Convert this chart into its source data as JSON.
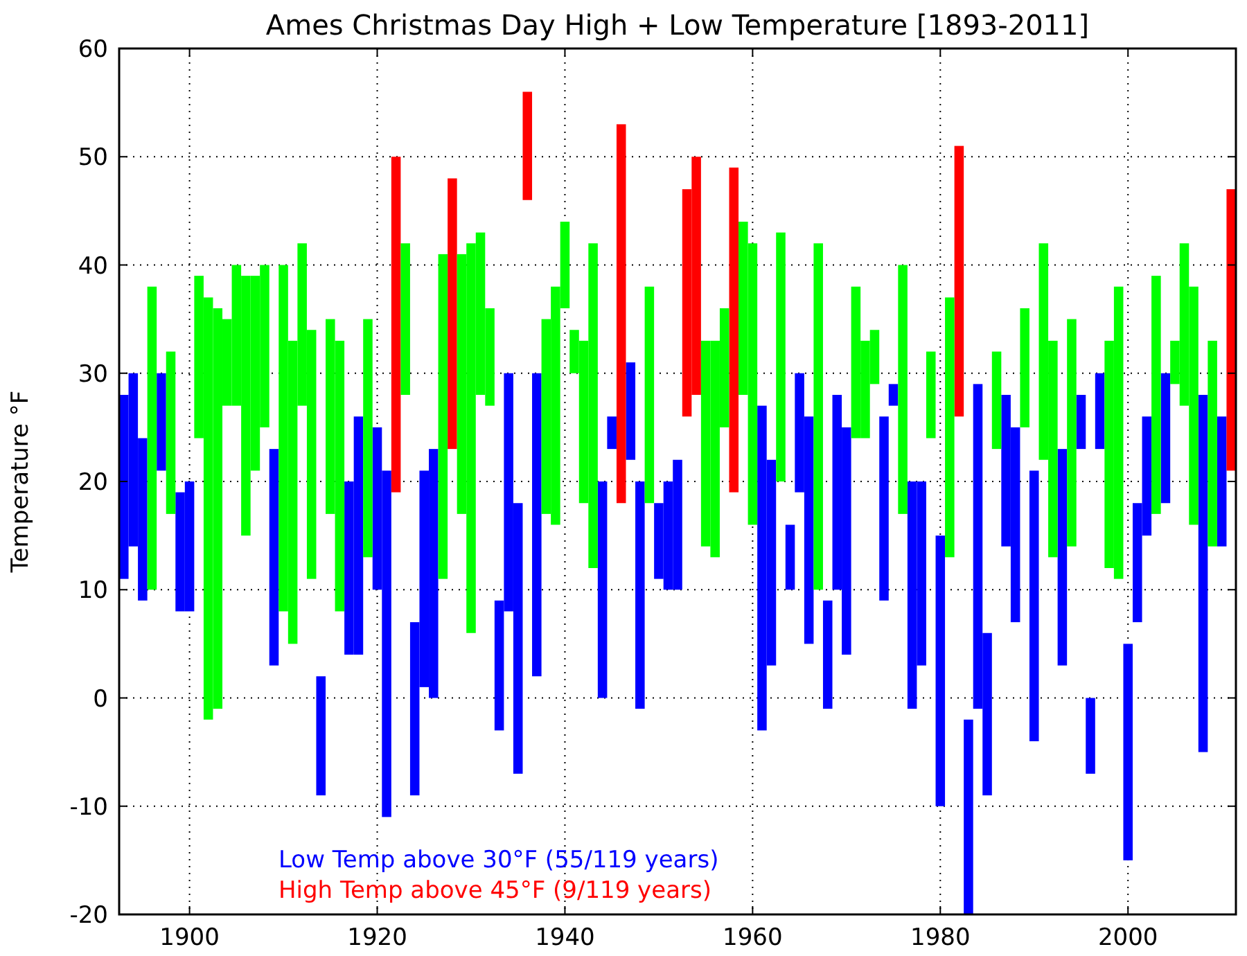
{
  "chart_data": {
    "type": "bar",
    "title": "Ames Christmas Day High + Low Temperature [1893-2011]",
    "ylabel": "Temperature °F",
    "x": [
      1893,
      1894,
      1895,
      1896,
      1897,
      1898,
      1899,
      1900,
      1901,
      1902,
      1903,
      1904,
      1905,
      1906,
      1907,
      1908,
      1909,
      1910,
      1911,
      1912,
      1913,
      1914,
      1915,
      1916,
      1917,
      1918,
      1919,
      1920,
      1921,
      1922,
      1923,
      1924,
      1925,
      1926,
      1927,
      1928,
      1929,
      1930,
      1931,
      1932,
      1933,
      1934,
      1935,
      1936,
      1937,
      1938,
      1939,
      1940,
      1941,
      1942,
      1943,
      1944,
      1945,
      1946,
      1947,
      1948,
      1949,
      1950,
      1951,
      1952,
      1953,
      1954,
      1955,
      1956,
      1957,
      1958,
      1959,
      1960,
      1961,
      1962,
      1963,
      1964,
      1965,
      1966,
      1967,
      1968,
      1969,
      1970,
      1971,
      1972,
      1973,
      1974,
      1975,
      1976,
      1977,
      1978,
      1979,
      1980,
      1981,
      1982,
      1983,
      1984,
      1985,
      1986,
      1987,
      1988,
      1989,
      1990,
      1991,
      1992,
      1993,
      1994,
      1995,
      1996,
      1997,
      1998,
      1999,
      2000,
      2001,
      2002,
      2003,
      2004,
      2005,
      2006,
      2007,
      2008,
      2009,
      2010,
      2011
    ],
    "series": [
      {
        "name": "Low Temp above 30°F (55/119 years)",
        "color": "#0000ff",
        "values": [
          17,
          16,
          15,
          null,
          9,
          null,
          11,
          12,
          null,
          null,
          null,
          null,
          null,
          null,
          null,
          null,
          20,
          null,
          null,
          null,
          null,
          11,
          null,
          null,
          16,
          22,
          null,
          15,
          32,
          null,
          null,
          16,
          20,
          23,
          null,
          null,
          null,
          null,
          null,
          null,
          12,
          22,
          25,
          null,
          28,
          null,
          null,
          null,
          null,
          null,
          null,
          20,
          3,
          null,
          9,
          21,
          null,
          7,
          10,
          12,
          null,
          null,
          null,
          null,
          null,
          null,
          null,
          null,
          30,
          19,
          null,
          6,
          11,
          21,
          null,
          10,
          18,
          21,
          null,
          null,
          null,
          17,
          2,
          null,
          21,
          17,
          null,
          25,
          null,
          null,
          18,
          30,
          15,
          null,
          14,
          18,
          null,
          25,
          null,
          null,
          20,
          null,
          5,
          7,
          7,
          null,
          null,
          20,
          11,
          11,
          null,
          12,
          null,
          null,
          null,
          33,
          null,
          12,
          null
        ],
        "base": [
          11,
          14,
          9,
          null,
          21,
          null,
          8,
          8,
          null,
          null,
          null,
          null,
          null,
          null,
          null,
          null,
          3,
          null,
          null,
          null,
          null,
          -9,
          null,
          null,
          4,
          4,
          null,
          10,
          -11,
          null,
          null,
          -9,
          1,
          0,
          null,
          null,
          null,
          null,
          null,
          null,
          -3,
          8,
          -7,
          null,
          2,
          null,
          null,
          null,
          null,
          null,
          null,
          0,
          23,
          null,
          22,
          -1,
          null,
          11,
          10,
          10,
          null,
          null,
          null,
          null,
          null,
          null,
          null,
          null,
          -3,
          3,
          null,
          10,
          19,
          5,
          null,
          -1,
          10,
          4,
          null,
          null,
          null,
          9,
          27,
          null,
          -1,
          3,
          null,
          -10,
          null,
          null,
          -20,
          -1,
          -9,
          null,
          14,
          7,
          null,
          -4,
          null,
          null,
          3,
          null,
          23,
          -7,
          23,
          null,
          null,
          -15,
          7,
          15,
          null,
          18,
          null,
          null,
          null,
          -5,
          null,
          14,
          null
        ]
      },
      {
        "name": "High Temp above 45°F (9/119 years)",
        "color": "#ff0000",
        "values": [
          null,
          null,
          null,
          null,
          null,
          null,
          null,
          null,
          null,
          null,
          null,
          null,
          null,
          null,
          null,
          null,
          null,
          null,
          null,
          null,
          null,
          null,
          null,
          null,
          null,
          null,
          null,
          null,
          null,
          31,
          null,
          null,
          null,
          null,
          null,
          25,
          null,
          null,
          null,
          null,
          null,
          null,
          null,
          10,
          null,
          null,
          null,
          null,
          null,
          null,
          null,
          null,
          null,
          35,
          null,
          null,
          null,
          null,
          null,
          null,
          21,
          22,
          null,
          null,
          null,
          30,
          null,
          null,
          null,
          null,
          null,
          null,
          null,
          null,
          null,
          null,
          null,
          null,
          null,
          null,
          null,
          null,
          null,
          null,
          null,
          null,
          null,
          null,
          null,
          25,
          null,
          null,
          null,
          null,
          null,
          null,
          null,
          null,
          null,
          null,
          null,
          null,
          null,
          null,
          null,
          null,
          null,
          null,
          null,
          null,
          null,
          null,
          null,
          null,
          null,
          null,
          null,
          null,
          26
        ],
        "base": [
          null,
          null,
          null,
          null,
          null,
          null,
          null,
          null,
          null,
          null,
          null,
          null,
          null,
          null,
          null,
          null,
          null,
          null,
          null,
          null,
          null,
          null,
          null,
          null,
          null,
          null,
          null,
          null,
          null,
          19,
          null,
          null,
          null,
          null,
          null,
          23,
          null,
          null,
          null,
          null,
          null,
          null,
          null,
          46,
          null,
          null,
          null,
          null,
          null,
          null,
          null,
          null,
          null,
          18,
          null,
          null,
          null,
          null,
          null,
          null,
          26,
          28,
          null,
          null,
          null,
          19,
          null,
          null,
          null,
          null,
          null,
          null,
          null,
          null,
          null,
          null,
          null,
          null,
          null,
          null,
          null,
          null,
          null,
          null,
          null,
          null,
          null,
          null,
          null,
          26,
          null,
          null,
          null,
          null,
          null,
          null,
          null,
          null,
          null,
          null,
          null,
          null,
          null,
          null,
          null,
          null,
          null,
          null,
          null,
          null,
          null,
          null,
          null,
          null,
          null,
          null,
          null,
          null,
          21
        ]
      },
      {
        "color": "#00ff00",
        "values": [
          null,
          null,
          null,
          28,
          null,
          15,
          null,
          null,
          15,
          39,
          37,
          8,
          13,
          24,
          18,
          15,
          null,
          32,
          28,
          15,
          23,
          null,
          18,
          25,
          null,
          null,
          22,
          null,
          null,
          null,
          14,
          null,
          null,
          null,
          30,
          null,
          24,
          36,
          15,
          9,
          null,
          null,
          null,
          null,
          null,
          18,
          22,
          8,
          4,
          15,
          30,
          null,
          null,
          null,
          null,
          null,
          20,
          null,
          null,
          null,
          null,
          null,
          19,
          20,
          11,
          null,
          16,
          26,
          null,
          null,
          23,
          null,
          null,
          null,
          32,
          null,
          null,
          null,
          14,
          9,
          5,
          null,
          null,
          23,
          null,
          null,
          8,
          null,
          24,
          null,
          null,
          null,
          null,
          9,
          null,
          null,
          11,
          null,
          20,
          20,
          null,
          21,
          null,
          null,
          null,
          21,
          27,
          null,
          null,
          null,
          22,
          null,
          4,
          15,
          22,
          null,
          19,
          null,
          null
        ],
        "base": [
          null,
          null,
          null,
          10,
          null,
          17,
          null,
          null,
          24,
          -2,
          -1,
          27,
          27,
          15,
          21,
          25,
          null,
          8,
          5,
          27,
          11,
          null,
          17,
          8,
          null,
          null,
          13,
          null,
          null,
          null,
          28,
          null,
          null,
          null,
          11,
          null,
          17,
          6,
          28,
          27,
          null,
          null,
          null,
          null,
          null,
          17,
          16,
          36,
          30,
          18,
          12,
          null,
          null,
          null,
          null,
          null,
          18,
          null,
          null,
          null,
          null,
          null,
          14,
          13,
          25,
          null,
          28,
          16,
          null,
          null,
          20,
          null,
          null,
          null,
          10,
          null,
          null,
          null,
          24,
          24,
          29,
          null,
          null,
          17,
          null,
          null,
          24,
          null,
          13,
          null,
          null,
          null,
          null,
          23,
          null,
          null,
          25,
          null,
          22,
          13,
          null,
          14,
          null,
          null,
          null,
          12,
          11,
          null,
          null,
          null,
          17,
          null,
          29,
          27,
          16,
          null,
          14,
          null,
          null
        ]
      }
    ],
    "xlim": [
      1892.5,
      2011.5
    ],
    "xticks": [
      1900,
      1920,
      1940,
      1960,
      1980,
      2000
    ],
    "ylim": [
      -20,
      60
    ],
    "yticks": [
      -20,
      -10,
      0,
      10,
      20,
      30,
      40,
      50,
      60
    ],
    "grid": true,
    "legend": "bottom left"
  }
}
